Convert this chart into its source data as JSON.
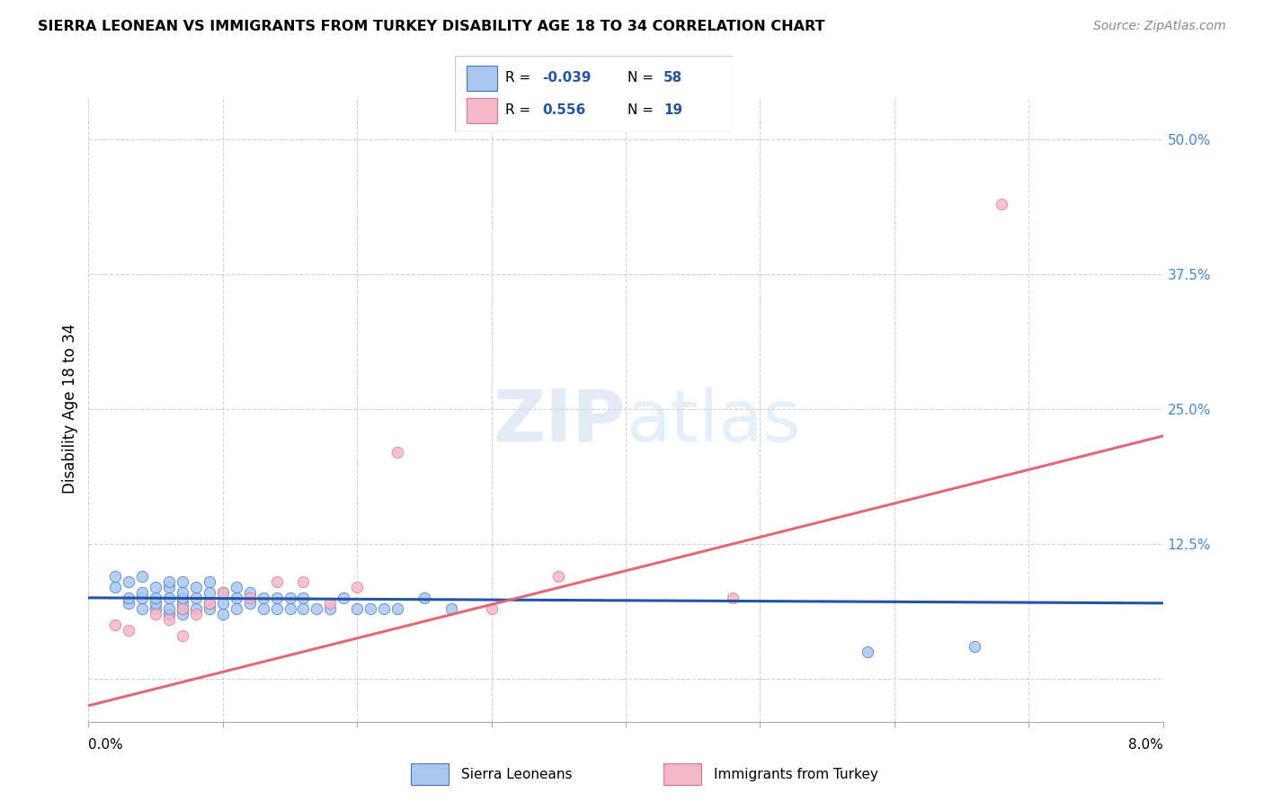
{
  "title": "SIERRA LEONEAN VS IMMIGRANTS FROM TURKEY DISABILITY AGE 18 TO 34 CORRELATION CHART",
  "source": "Source: ZipAtlas.com",
  "ylabel": "Disability Age 18 to 34",
  "xlim": [
    0.0,
    0.08
  ],
  "ylim": [
    -0.04,
    0.54
  ],
  "yticks": [
    0.0,
    0.125,
    0.25,
    0.375,
    0.5
  ],
  "ytick_labels": [
    "",
    "12.5%",
    "25.0%",
    "37.5%",
    "50.0%"
  ],
  "color_blue": "#a8c8f0",
  "color_pink": "#f4b8c8",
  "edge_blue": "#4472c4",
  "edge_pink": "#e07090",
  "line_blue": "#2255aa",
  "line_pink": "#e06878",
  "r_blue": -0.039,
  "n_blue": 58,
  "r_pink": 0.556,
  "n_pink": 19,
  "blue_x": [
    0.002,
    0.002,
    0.003,
    0.003,
    0.003,
    0.004,
    0.004,
    0.004,
    0.004,
    0.005,
    0.005,
    0.005,
    0.005,
    0.006,
    0.006,
    0.006,
    0.006,
    0.006,
    0.007,
    0.007,
    0.007,
    0.007,
    0.007,
    0.007,
    0.008,
    0.008,
    0.008,
    0.009,
    0.009,
    0.009,
    0.009,
    0.01,
    0.01,
    0.01,
    0.011,
    0.011,
    0.011,
    0.012,
    0.012,
    0.013,
    0.013,
    0.014,
    0.014,
    0.015,
    0.015,
    0.016,
    0.016,
    0.017,
    0.018,
    0.019,
    0.02,
    0.021,
    0.022,
    0.023,
    0.025,
    0.027,
    0.058,
    0.066
  ],
  "blue_y": [
    0.085,
    0.095,
    0.07,
    0.075,
    0.09,
    0.065,
    0.075,
    0.08,
    0.095,
    0.065,
    0.07,
    0.075,
    0.085,
    0.06,
    0.065,
    0.075,
    0.085,
    0.09,
    0.06,
    0.065,
    0.07,
    0.075,
    0.08,
    0.09,
    0.065,
    0.075,
    0.085,
    0.065,
    0.07,
    0.08,
    0.09,
    0.06,
    0.07,
    0.08,
    0.065,
    0.075,
    0.085,
    0.07,
    0.08,
    0.065,
    0.075,
    0.065,
    0.075,
    0.065,
    0.075,
    0.065,
    0.075,
    0.065,
    0.065,
    0.075,
    0.065,
    0.065,
    0.065,
    0.065,
    0.075,
    0.065,
    0.025,
    0.03
  ],
  "pink_x": [
    0.002,
    0.003,
    0.005,
    0.006,
    0.007,
    0.007,
    0.008,
    0.009,
    0.01,
    0.012,
    0.014,
    0.016,
    0.018,
    0.02,
    0.023,
    0.03,
    0.035,
    0.048,
    0.068
  ],
  "pink_y": [
    0.05,
    0.045,
    0.06,
    0.055,
    0.04,
    0.065,
    0.06,
    0.07,
    0.08,
    0.075,
    0.09,
    0.09,
    0.07,
    0.085,
    0.21,
    0.065,
    0.095,
    0.075,
    0.44
  ],
  "blue_line_x": [
    0.0,
    0.08
  ],
  "blue_line_y": [
    0.075,
    0.07
  ],
  "pink_line_x": [
    0.0,
    0.08
  ],
  "pink_line_y": [
    -0.025,
    0.225
  ]
}
